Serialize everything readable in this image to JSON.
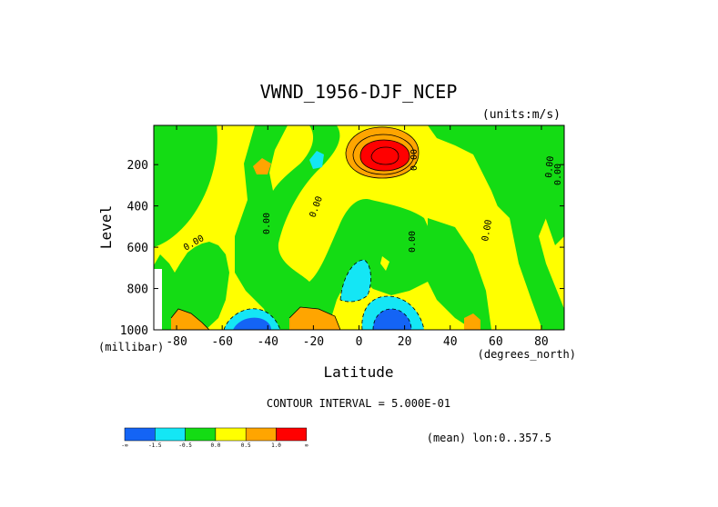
{
  "chart_data": {
    "type": "contour",
    "title": "VWND_1956-DJF_NCEP",
    "units": "(units:m/s)",
    "xlabel": "Latitude",
    "x_units": "(degrees_north)",
    "ylabel": "Level",
    "y_units": "(millibar)",
    "xlim": [
      -90,
      90
    ],
    "ylim": [
      1000,
      10
    ],
    "x_ticks": [
      "-80",
      "-60",
      "-40",
      "-20",
      "0",
      "20",
      "40",
      "60",
      "80"
    ],
    "y_ticks": [
      "200",
      "400",
      "600",
      "800",
      "1000"
    ],
    "contour_interval_text": "CONTOUR INTERVAL = 5.000E-01",
    "footer_text": "(mean) lon:0..357.5",
    "contour_labels": [
      "0.00",
      "0.00",
      "0.00",
      "0.00",
      "0.00",
      "0.00",
      "0.00",
      "0.00"
    ],
    "legend": {
      "colors": [
        "#1464f5",
        "#14e6f5",
        "#14dc14",
        "#ffff00",
        "#ffa500",
        "#ff0000"
      ],
      "labels": [
        "-∞",
        "-1.5",
        "-0.5",
        "0.0",
        "0.5",
        "1.0",
        "∞"
      ]
    },
    "regions": [
      {
        "kind": "positive-max",
        "lat": 12,
        "level": 150,
        "value": 1.5
      },
      {
        "kind": "negative-min",
        "lat": 12,
        "level": 960,
        "value": -1.5
      },
      {
        "kind": "negative-min",
        "lat": -45,
        "level": 980,
        "value": -1.0
      },
      {
        "kind": "negative",
        "lat": 5,
        "level": 780,
        "value": -0.5
      }
    ]
  }
}
